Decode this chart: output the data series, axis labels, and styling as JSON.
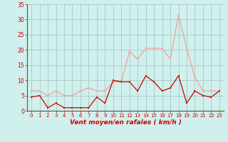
{
  "x": [
    0,
    1,
    2,
    3,
    4,
    5,
    6,
    7,
    8,
    9,
    10,
    11,
    12,
    13,
    14,
    15,
    16,
    17,
    18,
    19,
    20,
    21,
    22,
    23
  ],
  "rafales": [
    6.5,
    6.5,
    5.0,
    6.5,
    5.0,
    5.0,
    6.5,
    7.5,
    6.5,
    6.5,
    9.5,
    9.5,
    19.5,
    17.0,
    20.5,
    20.5,
    20.5,
    17.0,
    31.5,
    20.5,
    11.0,
    6.5,
    6.5,
    6.5
  ],
  "moyen": [
    4.5,
    5.0,
    1.0,
    2.5,
    1.0,
    1.0,
    1.0,
    1.0,
    4.5,
    2.5,
    10.0,
    9.5,
    9.5,
    6.5,
    11.5,
    9.5,
    6.5,
    7.5,
    11.5,
    2.5,
    6.5,
    5.0,
    4.5,
    6.5
  ],
  "bg_color": "#cff0ec",
  "grid_color": "#aacfca",
  "line_color_rafales": "#f0a0a0",
  "line_color_moyen": "#cc0000",
  "xlabel": "Vent moyen/en rafales ( km/h )",
  "xlabel_color": "#cc0000",
  "tick_color": "#cc0000",
  "ylim": [
    0,
    35
  ],
  "yticks": [
    0,
    5,
    10,
    15,
    20,
    25,
    30,
    35
  ],
  "xlim": [
    -0.5,
    23.5
  ],
  "spine_color": "#888888"
}
